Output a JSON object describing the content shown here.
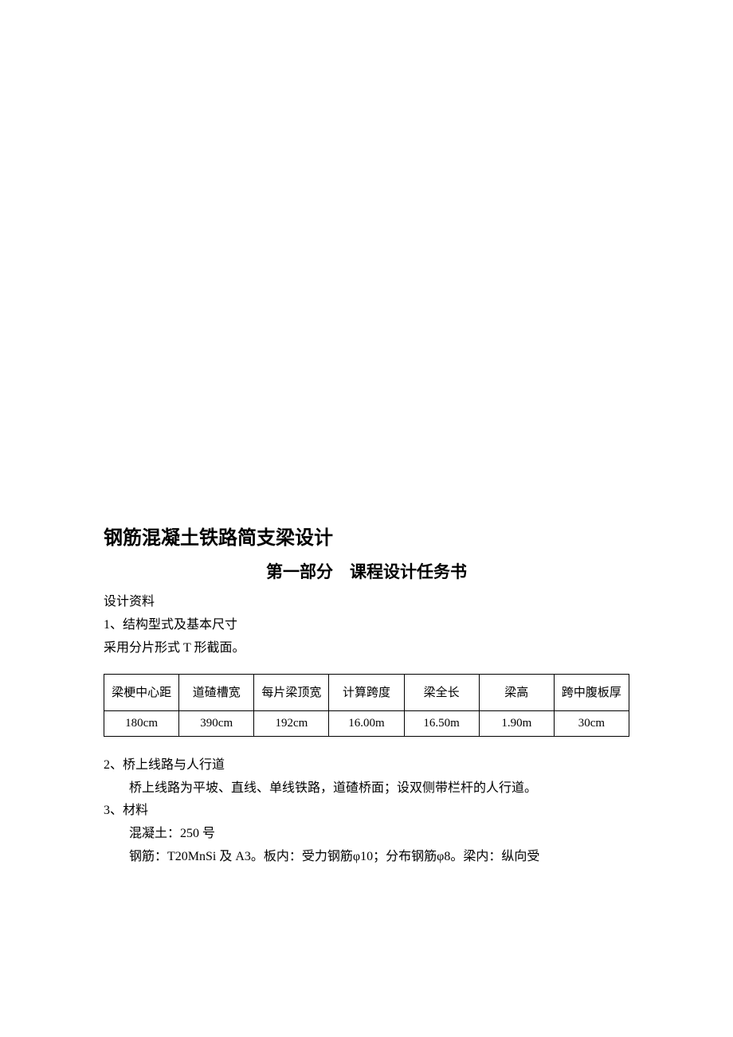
{
  "title": "钢筋混凝土铁路简支梁设计",
  "subtitle": "第一部分　课程设计任务书",
  "section_data_label": "设计资料",
  "item1_heading": "1、结构型式及基本尺寸",
  "item1_body": "采用分片形式 T 形截面。",
  "table": {
    "columns": [
      "梁梗中心距",
      "道碴槽宽",
      "每片梁顶宽",
      "计算跨度",
      "梁全长",
      "梁高",
      "跨中腹板厚"
    ],
    "rows": [
      [
        "180cm",
        "390cm",
        "192cm",
        "16.00m",
        "16.50m",
        "1.90m",
        "30cm"
      ]
    ],
    "border_color": "#000000",
    "font_size": 15
  },
  "item2_heading": "2、桥上线路与人行道",
  "item2_body": "桥上线路为平坡、直线、单线铁路，道碴桥面；设双侧带栏杆的人行道。",
  "item3_heading": "3、材料",
  "item3_line1": "混凝土：250 号",
  "item3_line2": "钢筋：T20MnSi 及 A3。板内：受力钢筋φ10；分布钢筋φ8。梁内：纵向受"
}
